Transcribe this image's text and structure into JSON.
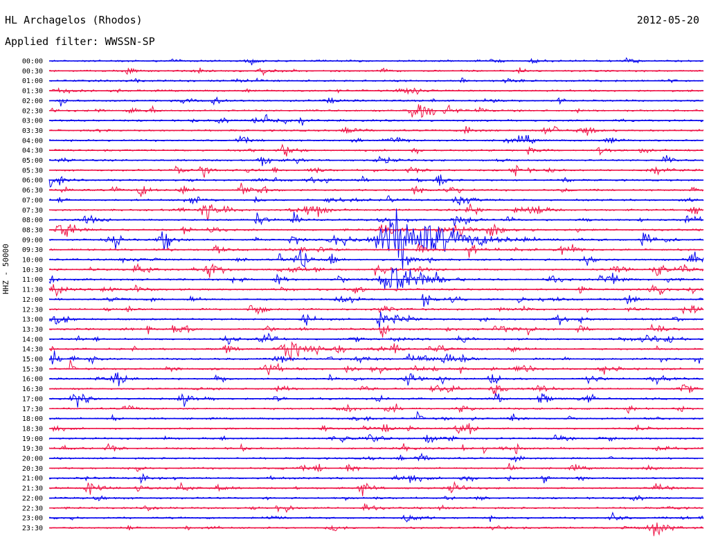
{
  "header": {
    "station": "HL Archagelos (Rhodos)",
    "date": "2012-05-20",
    "filter": "Applied filter: WWSSN-SP"
  },
  "axis": {
    "ylabel": "HHZ - 50000"
  },
  "colors": {
    "even_trace": "#0000ee",
    "odd_trace": "#ee1144"
  },
  "chart_data": {
    "type": "line",
    "title": "HL Archagelos (Rhodos)",
    "date": "2012-05-20",
    "filter": "WWSSN-SP",
    "ylabel": "HHZ - 50000",
    "trace_minutes": 30,
    "rows": [
      "00:00",
      "00:30",
      "01:00",
      "01:30",
      "02:00",
      "02:30",
      "03:00",
      "03:30",
      "04:00",
      "04:30",
      "05:00",
      "05:30",
      "06:00",
      "06:30",
      "07:00",
      "07:30",
      "08:00",
      "08:30",
      "09:00",
      "09:30",
      "10:00",
      "10:30",
      "11:00",
      "11:30",
      "12:00",
      "12:30",
      "13:00",
      "13:30",
      "14:00",
      "14:30",
      "15:00",
      "15:30",
      "16:00",
      "16:30",
      "17:00",
      "17:30",
      "18:00",
      "18:30",
      "19:00",
      "19:30",
      "20:00",
      "20:30",
      "21:00",
      "21:30",
      "22:00",
      "22:30",
      "23:00",
      "23:30"
    ],
    "activity": [
      1,
      2,
      1,
      1,
      2,
      2,
      3,
      3,
      3,
      3,
      3,
      4,
      4,
      4,
      4,
      5,
      5,
      5,
      5,
      5,
      5,
      5,
      5,
      5,
      5,
      5,
      5,
      5,
      5,
      5,
      5,
      5,
      5,
      4,
      4,
      3,
      3,
      3,
      3,
      3,
      2,
      2,
      3,
      3,
      2,
      2,
      2,
      2
    ],
    "events": [
      {
        "row": 18,
        "x_min": 16.2,
        "amp": 5
      },
      {
        "row": 5,
        "x_min": 17.0,
        "amp": 1.6
      },
      {
        "row": 4,
        "x_min": 7.5,
        "amp": 0.8
      },
      {
        "row": 42,
        "x_min": 16.5,
        "amp": 1.0
      },
      {
        "row": 43,
        "x_min": 18.5,
        "amp": 1.0
      },
      {
        "row": 47,
        "x_min": 27.8,
        "amp": 1.2
      },
      {
        "row": 46,
        "x_min": 16.5,
        "amp": 1.0
      },
      {
        "row": 22,
        "x_min": 16.0,
        "amp": 2.5
      }
    ]
  }
}
